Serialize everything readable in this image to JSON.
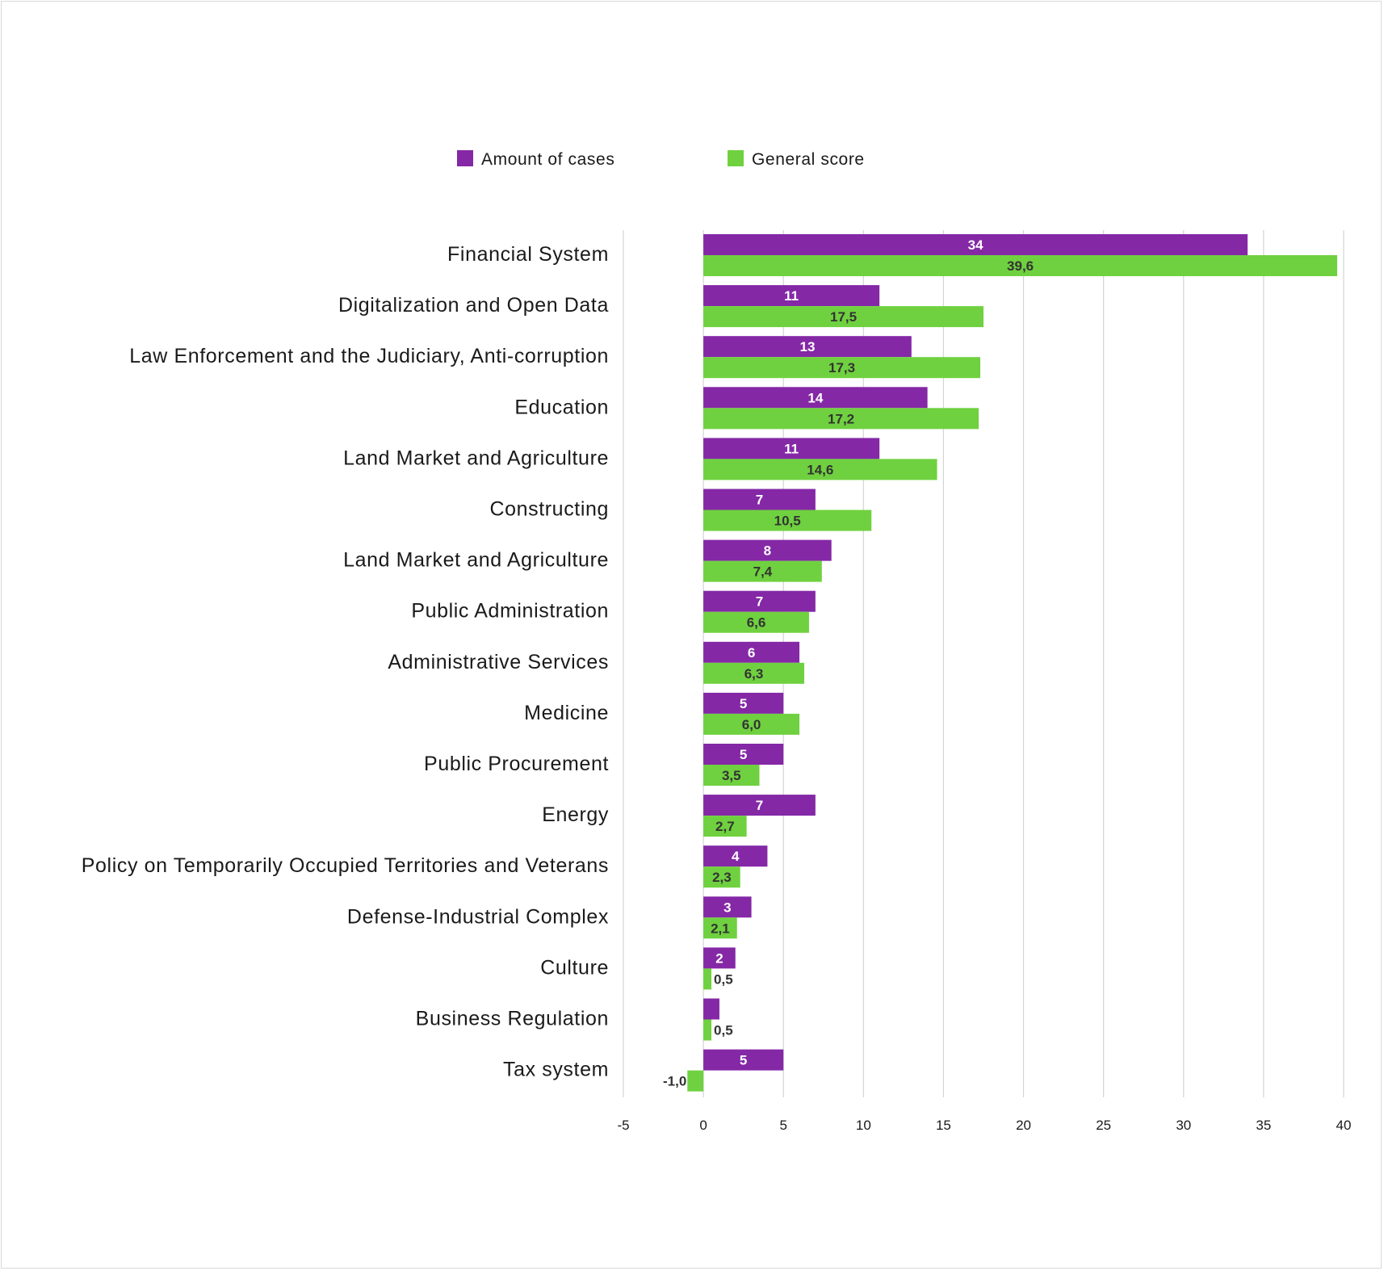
{
  "chart_data": {
    "type": "bar",
    "orientation": "horizontal",
    "categories": [
      "Financial System",
      "Digitalization and Open Data",
      "Law Enforcement and the Judiciary, Anti-corruption",
      "Education",
      "Land Market and Agriculture",
      "Constructing",
      "Land Market and Agriculture",
      "Public Administration",
      "Administrative Services",
      "Medicine",
      "Public Procurement",
      "Energy",
      "Policy on Temporarily Occupied Territories and Veterans",
      "Defense-Industrial Complex",
      "Culture",
      "Business Regulation",
      "Tax system"
    ],
    "series": [
      {
        "name": "Amount of cases",
        "color": "#8428a6",
        "values": [
          34,
          11,
          13,
          14,
          11,
          7,
          8,
          7,
          6,
          5,
          5,
          7,
          4,
          3,
          2,
          1,
          5
        ],
        "labels": [
          "34",
          "11",
          "13",
          "14",
          "11",
          "7",
          "8",
          "7",
          "6",
          "5",
          "5",
          "7",
          "4",
          "3",
          "2",
          "1",
          "5"
        ]
      },
      {
        "name": "General score",
        "color": "#6fd13f",
        "values": [
          39.6,
          17.5,
          17.3,
          17.2,
          14.6,
          10.5,
          7.4,
          6.6,
          6.3,
          6.0,
          3.5,
          2.7,
          2.3,
          2.1,
          0.5,
          0.5,
          -1.0
        ],
        "labels": [
          "39,6",
          "17,5",
          "17,3",
          "17,2",
          "14,6",
          "10,5",
          "7,4",
          "6,6",
          "6,3",
          "6,0",
          "3,5",
          "2,7",
          "2,3",
          "2,1",
          "0,5",
          "0,5",
          "-1,0"
        ]
      }
    ],
    "xlim": [
      -5,
      40
    ],
    "xticks": [
      -5,
      0,
      5,
      10,
      15,
      20,
      25,
      30,
      35,
      40
    ],
    "xtick_labels": [
      "-5",
      "0",
      "5",
      "10",
      "15",
      "20",
      "25",
      "30",
      "35",
      "40"
    ],
    "grid": "vertical",
    "legend": "top-center",
    "title": "",
    "xlabel": "",
    "ylabel": ""
  }
}
